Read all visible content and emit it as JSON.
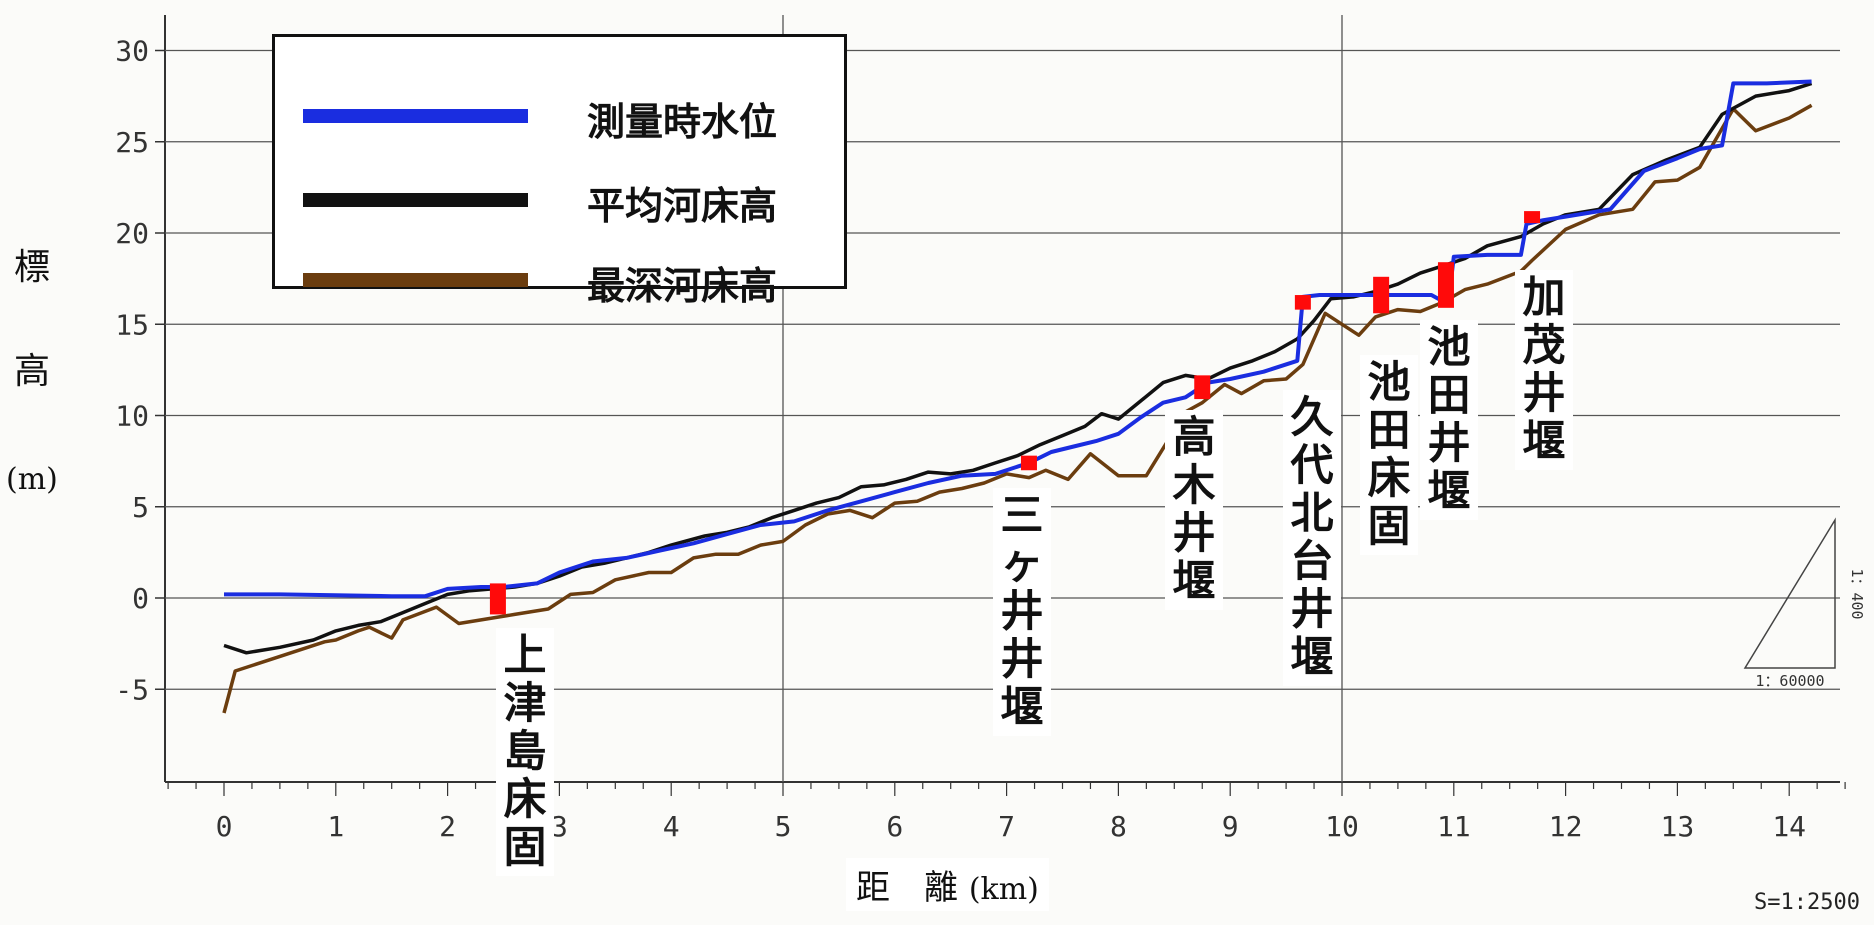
{
  "chart_data": {
    "type": "line",
    "xlabel": "距　離",
    "xlabel_unit": "(km)",
    "ylabel_chars": [
      "標",
      "高"
    ],
    "ylabel_unit": "(m)",
    "xlim": [
      -0.5,
      14.5
    ],
    "ylim": [
      -10,
      31
    ],
    "xticks": [
      0,
      1,
      2,
      3,
      4,
      5,
      6,
      7,
      8,
      9,
      10,
      11,
      12,
      13,
      14
    ],
    "yticks": [
      30,
      25,
      20,
      15,
      10,
      5,
      0,
      -5
    ],
    "ytick_labels": [
      "30",
      "25",
      "20",
      "15",
      "10",
      "5",
      "0",
      "-5"
    ],
    "grid": true,
    "series": [
      {
        "name": "最深河床高",
        "color": "#6b3d0f",
        "x": [
          0,
          0.1,
          0.5,
          0.9,
          1.0,
          1.2,
          1.3,
          1.5,
          1.6,
          1.9,
          2.1,
          2.3,
          2.6,
          2.9,
          3.1,
          3.3,
          3.5,
          3.8,
          4.0,
          4.2,
          4.4,
          4.6,
          4.8,
          5.0,
          5.2,
          5.4,
          5.6,
          5.8,
          6.0,
          6.2,
          6.4,
          6.6,
          6.8,
          7.0,
          7.2,
          7.35,
          7.55,
          7.75,
          8.0,
          8.25,
          8.4,
          8.6,
          8.75,
          8.95,
          9.1,
          9.3,
          9.5,
          9.65,
          9.85,
          10.0,
          10.15,
          10.3,
          10.5,
          10.7,
          10.9,
          11.1,
          11.3,
          11.6,
          11.7,
          12.0,
          12.3,
          12.6,
          12.8,
          13.0,
          13.2,
          13.5,
          13.7,
          14.0,
          14.2
        ],
        "y": [
          -6.3,
          -4.0,
          -3.2,
          -2.4,
          -2.3,
          -1.8,
          -1.6,
          -2.2,
          -1.2,
          -0.5,
          -1.4,
          -1.2,
          -0.9,
          -0.6,
          0.2,
          0.3,
          1.0,
          1.4,
          1.4,
          2.2,
          2.4,
          2.4,
          2.9,
          3.1,
          4.0,
          4.6,
          4.8,
          4.4,
          5.2,
          5.3,
          5.8,
          6.0,
          6.3,
          6.8,
          6.6,
          7.0,
          6.5,
          7.9,
          6.7,
          6.7,
          8.2,
          10.2,
          10.7,
          11.7,
          11.2,
          11.9,
          12.0,
          12.8,
          15.6,
          15.0,
          14.4,
          15.4,
          15.8,
          15.7,
          16.2,
          16.9,
          17.2,
          17.9,
          18.5,
          20.2,
          21.0,
          21.3,
          22.8,
          22.9,
          23.6,
          26.8,
          25.6,
          26.3,
          27.0
        ]
      },
      {
        "name": "平均河床高",
        "color": "#111111",
        "x": [
          0,
          0.2,
          0.5,
          0.8,
          1.0,
          1.2,
          1.4,
          1.6,
          1.8,
          2.0,
          2.2,
          2.4,
          2.6,
          2.8,
          3.0,
          3.2,
          3.4,
          3.6,
          3.8,
          4.0,
          4.3,
          4.5,
          4.7,
          4.9,
          5.1,
          5.3,
          5.5,
          5.7,
          5.9,
          6.1,
          6.3,
          6.5,
          6.7,
          6.9,
          7.1,
          7.3,
          7.5,
          7.7,
          7.85,
          8.0,
          8.2,
          8.4,
          8.6,
          8.8,
          9.0,
          9.2,
          9.4,
          9.6,
          9.75,
          9.9,
          10.1,
          10.3,
          10.5,
          10.7,
          10.9,
          11.1,
          11.3,
          11.6,
          11.8,
          12.0,
          12.3,
          12.6,
          12.9,
          13.2,
          13.4,
          13.7,
          14.0,
          14.2
        ],
        "y": [
          -2.6,
          -3.0,
          -2.7,
          -2.3,
          -1.8,
          -1.5,
          -1.3,
          -0.8,
          -0.3,
          0.2,
          0.4,
          0.5,
          0.6,
          0.8,
          1.2,
          1.7,
          1.9,
          2.2,
          2.5,
          2.9,
          3.4,
          3.6,
          3.9,
          4.4,
          4.8,
          5.2,
          5.5,
          6.1,
          6.2,
          6.5,
          6.9,
          6.8,
          7.0,
          7.4,
          7.8,
          8.4,
          8.9,
          9.4,
          10.1,
          9.8,
          10.8,
          11.8,
          12.2,
          12.0,
          12.6,
          13.0,
          13.5,
          14.2,
          15.2,
          16.4,
          16.5,
          16.8,
          17.2,
          17.8,
          18.2,
          18.6,
          19.3,
          19.8,
          20.5,
          21.0,
          21.3,
          23.2,
          24.0,
          24.7,
          26.5,
          27.5,
          27.8,
          28.2
        ]
      },
      {
        "name": "測量時水位",
        "color": "#1a2de0",
        "x": [
          0,
          0.5,
          1.0,
          1.5,
          1.8,
          2.0,
          2.3,
          2.5,
          2.8,
          3.0,
          3.3,
          3.6,
          3.9,
          4.2,
          4.5,
          4.8,
          5.1,
          5.4,
          5.7,
          6.0,
          6.3,
          6.6,
          6.9,
          7.2,
          7.4,
          7.6,
          7.8,
          8.0,
          8.2,
          8.4,
          8.6,
          8.8,
          9.0,
          9.3,
          9.6,
          9.65,
          9.8,
          10.0,
          10.2,
          10.4,
          10.6,
          10.8,
          10.95,
          11.0,
          11.3,
          11.6,
          11.65,
          11.8,
          12.0,
          12.4,
          12.7,
          13.0,
          13.2,
          13.4,
          13.5,
          13.8,
          14.2
        ],
        "y": [
          0.2,
          0.2,
          0.15,
          0.1,
          0.1,
          0.5,
          0.6,
          0.6,
          0.8,
          1.4,
          2.0,
          2.2,
          2.6,
          3.0,
          3.5,
          4.0,
          4.2,
          4.8,
          5.3,
          5.8,
          6.3,
          6.7,
          6.8,
          7.4,
          8.0,
          8.3,
          8.6,
          9.0,
          9.9,
          10.7,
          11.0,
          11.8,
          12.0,
          12.4,
          13.0,
          16.5,
          16.6,
          16.6,
          16.6,
          16.6,
          16.6,
          16.6,
          16.1,
          18.7,
          18.8,
          18.8,
          20.5,
          20.7,
          20.9,
          21.3,
          23.4,
          24.1,
          24.6,
          24.8,
          28.2,
          28.2,
          28.3
        ]
      }
    ],
    "weirs": [
      {
        "name": "上津島床固",
        "x": 2.45,
        "y_low": -0.9,
        "y_high": 0.8
      },
      {
        "name": "三ヶ井井堰",
        "x": 7.2,
        "y_low": 7.0,
        "y_high": 7.8
      },
      {
        "name": "高木井堰",
        "x": 8.75,
        "y_low": 10.9,
        "y_high": 12.2
      },
      {
        "name": "久代北台井堰",
        "x": 9.65,
        "y_low": 15.8,
        "y_high": 16.6
      },
      {
        "name": "池田床固",
        "x": 10.35,
        "y_low": 15.6,
        "y_high": 17.6
      },
      {
        "name": "池田井堰",
        "x": 10.93,
        "y_low": 15.9,
        "y_high": 18.4
      },
      {
        "name": "加茂井堰",
        "x": 11.7,
        "y_low": 20.6,
        "y_high": 21.2
      }
    ],
    "legend": "top-left"
  },
  "legend_items": [
    {
      "label": "測量時水位",
      "color": "#1a2de0"
    },
    {
      "label": "平均河床高",
      "color": "#111111"
    },
    {
      "label": "最深河床高",
      "color": "#6b3d0f"
    }
  ],
  "inset_triangle": {
    "vertical_label": "1：400",
    "horizontal_label": "1：60000"
  },
  "scale_note": "S=1:2500",
  "weir_color": "#ff0a0a"
}
